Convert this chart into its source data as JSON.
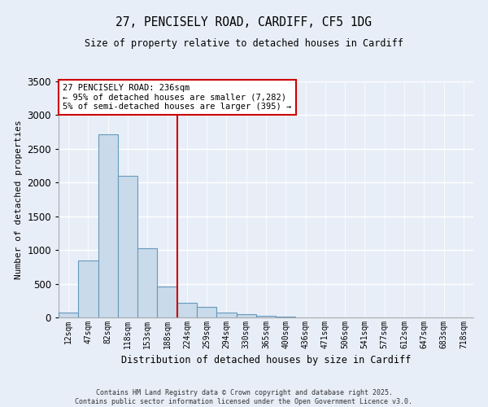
{
  "title_line1": "27, PENCISELY ROAD, CARDIFF, CF5 1DG",
  "title_line2": "Size of property relative to detached houses in Cardiff",
  "xlabel": "Distribution of detached houses by size in Cardiff",
  "ylabel": "Number of detached properties",
  "bar_color": "#c9daea",
  "bar_edge_color": "#6699bb",
  "background_color": "#e8eef8",
  "grid_color": "#ffffff",
  "categories": [
    "12sqm",
    "47sqm",
    "82sqm",
    "118sqm",
    "153sqm",
    "188sqm",
    "224sqm",
    "259sqm",
    "294sqm",
    "330sqm",
    "365sqm",
    "400sqm",
    "436sqm",
    "471sqm",
    "506sqm",
    "541sqm",
    "577sqm",
    "612sqm",
    "647sqm",
    "683sqm",
    "718sqm"
  ],
  "values": [
    75,
    840,
    2720,
    2100,
    1030,
    460,
    220,
    155,
    75,
    50,
    20,
    10,
    5,
    3,
    2,
    2,
    1,
    1,
    1,
    0,
    0
  ],
  "ylim": [
    0,
    3500
  ],
  "yticks": [
    0,
    500,
    1000,
    1500,
    2000,
    2500,
    3000,
    3500
  ],
  "annotation_text": "27 PENCISELY ROAD: 236sqm\n← 95% of detached houses are smaller (7,282)\n5% of semi-detached houses are larger (395) →",
  "vline_index": 6,
  "vline_color": "#cc0000",
  "annotation_box_color": "#ffffff",
  "annotation_box_edge_color": "#cc0000",
  "footer_line1": "Contains HM Land Registry data © Crown copyright and database right 2025.",
  "footer_line2": "Contains public sector information licensed under the Open Government Licence v3.0."
}
